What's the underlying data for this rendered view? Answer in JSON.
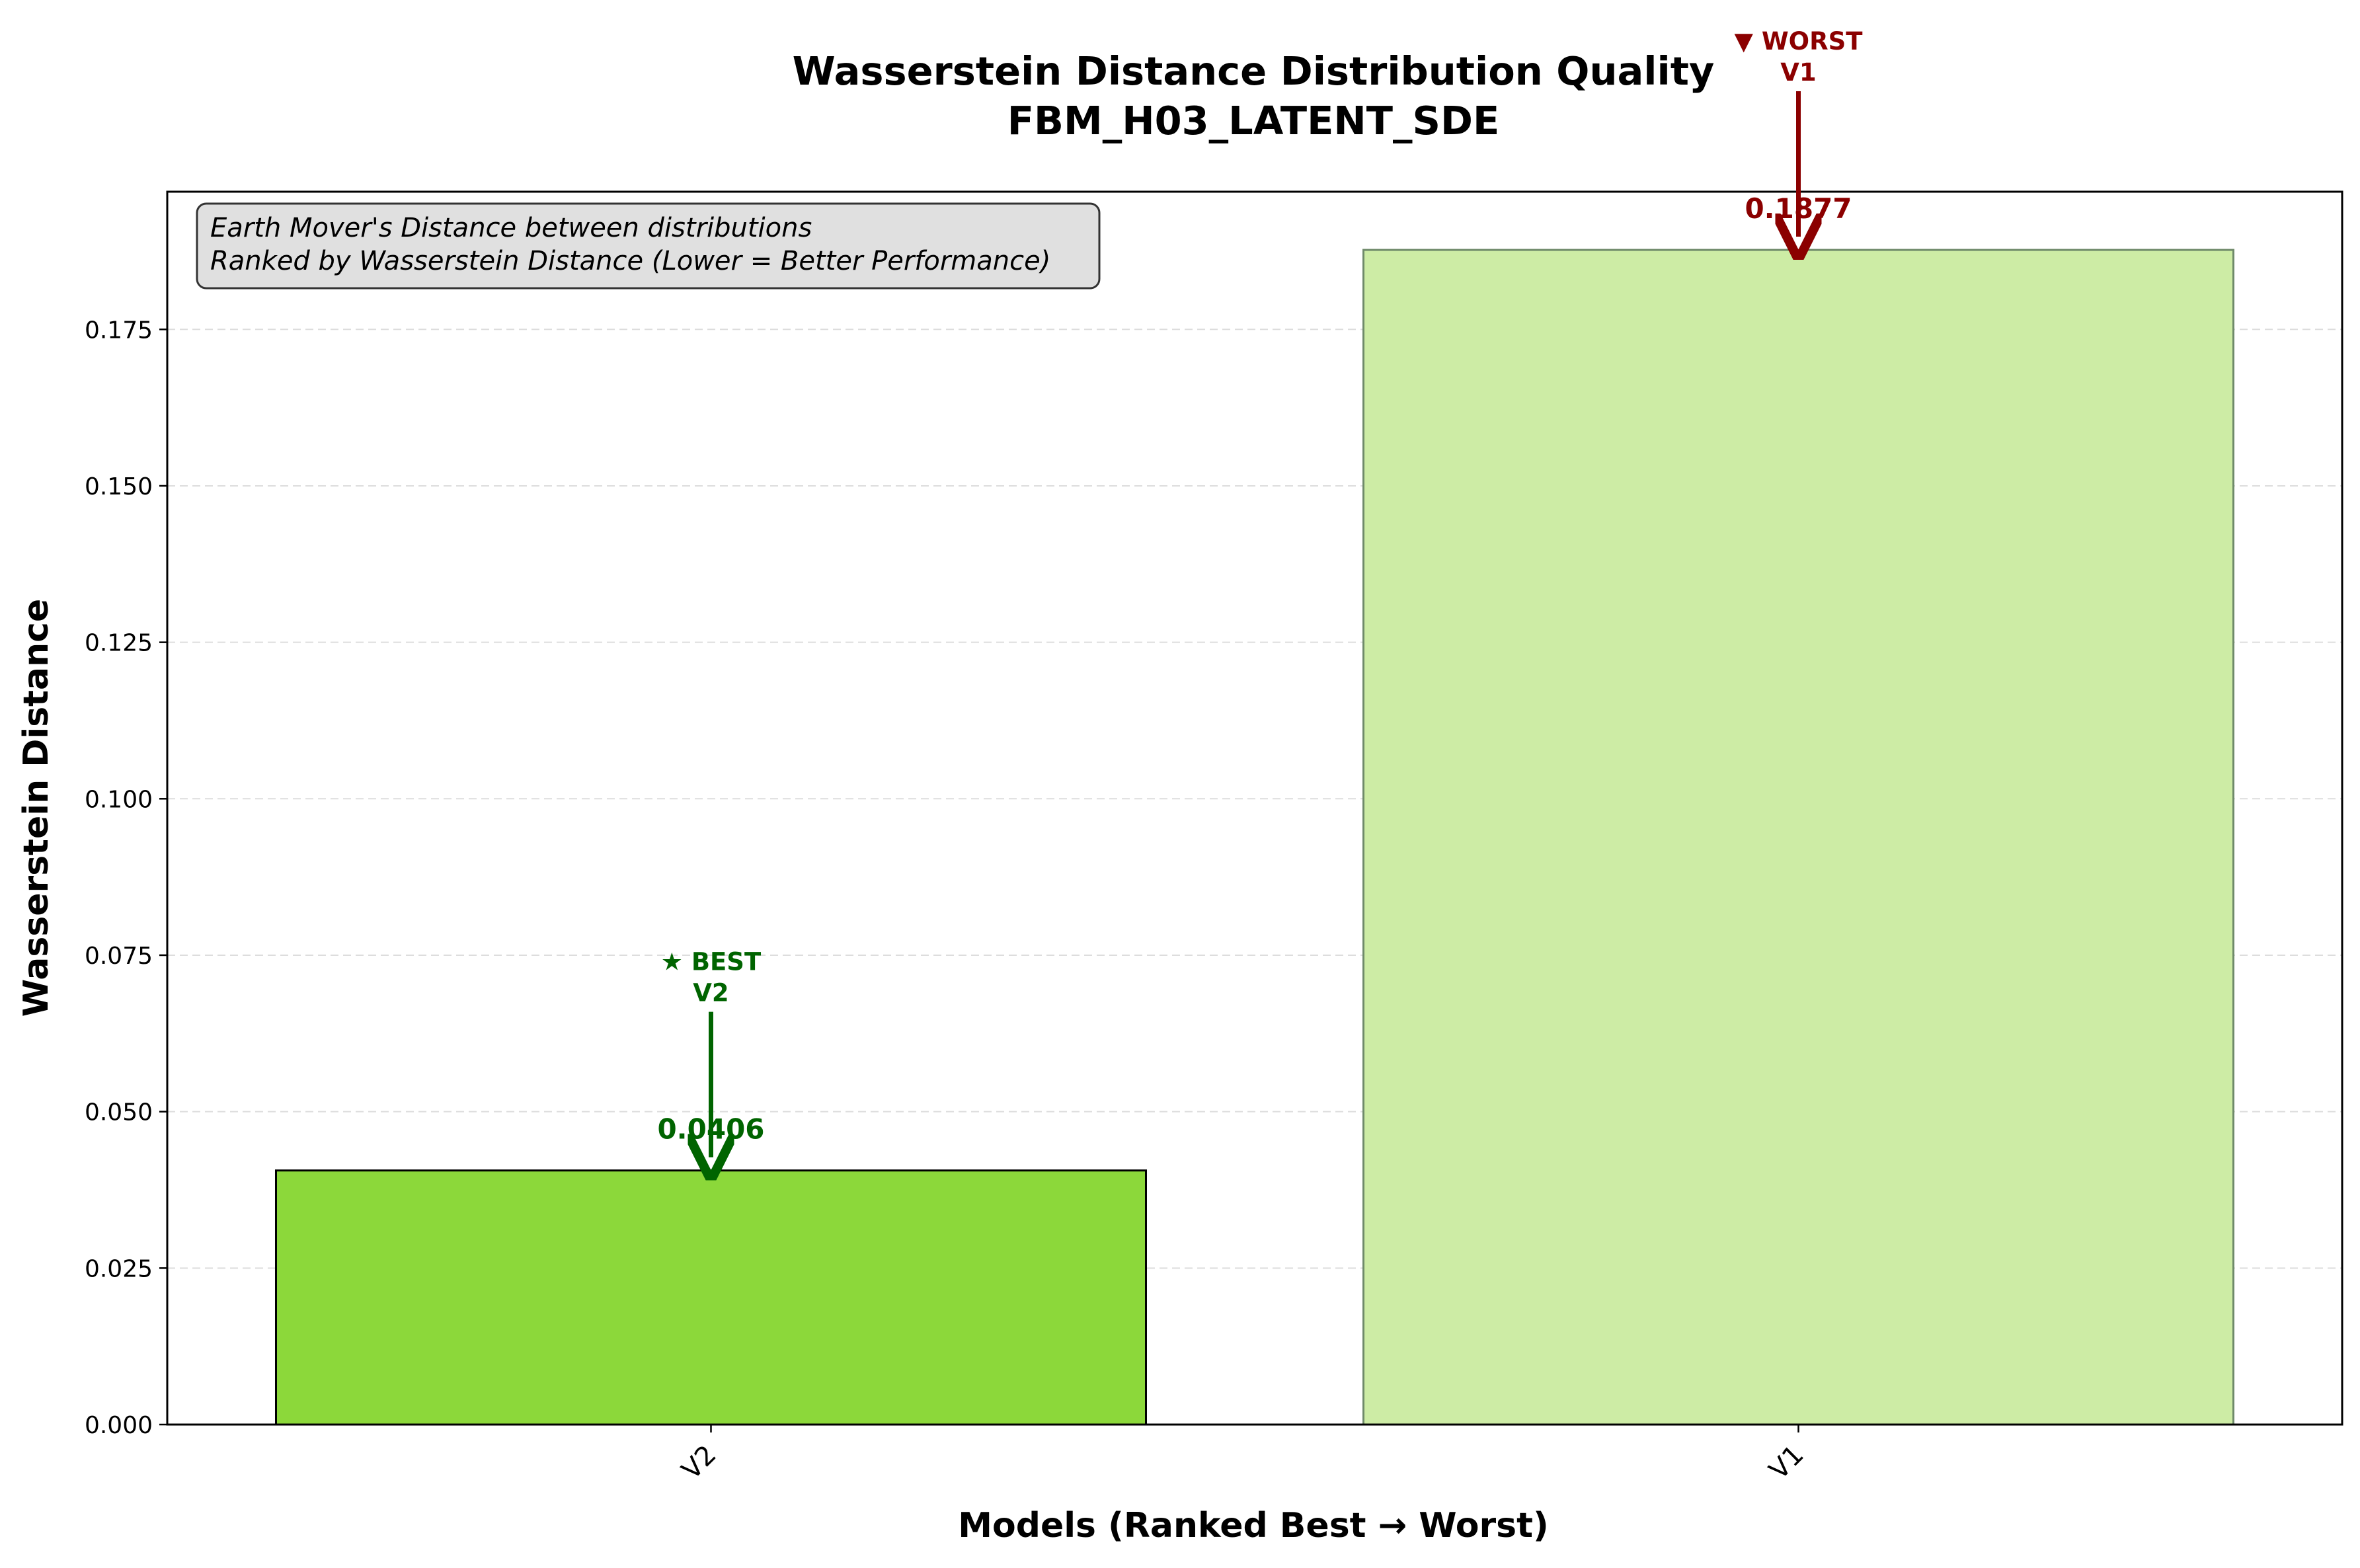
{
  "chart_data": {
    "type": "bar",
    "title": "Wasserstein Distance Distribution Quality",
    "subtitle": "FBM_H03_LATENT_SDE",
    "xlabel": "Models (Ranked Best → Worst)",
    "ylabel": "Wasserstein Distance",
    "categories": [
      "V2",
      "V1"
    ],
    "values": [
      0.0406,
      0.1877
    ],
    "value_labels": [
      "0.0406",
      "0.1877"
    ],
    "bar_colors": [
      "#8cd83a",
      "#cdeca5"
    ],
    "ylim": [
      0,
      0.197
    ],
    "yticks": [
      0.0,
      0.025,
      0.05,
      0.075,
      0.1,
      0.125,
      0.15,
      0.175
    ],
    "ytick_labels": [
      "0.000",
      "0.025",
      "0.050",
      "0.075",
      "0.100",
      "0.125",
      "0.150",
      "0.175"
    ],
    "grid": "y-dashed",
    "info_box": {
      "line1": "Earth Mover's Distance between distributions",
      "line2": "Ranked by Wasserstein Distance (Lower = Better Performance)"
    },
    "annotations": [
      {
        "category": "V2",
        "line1": "★ BEST",
        "line2": "V2",
        "color": "#006400"
      },
      {
        "category": "V1",
        "line1": "▼ WORST",
        "line2": "V1",
        "color": "#8b0000"
      }
    ]
  }
}
